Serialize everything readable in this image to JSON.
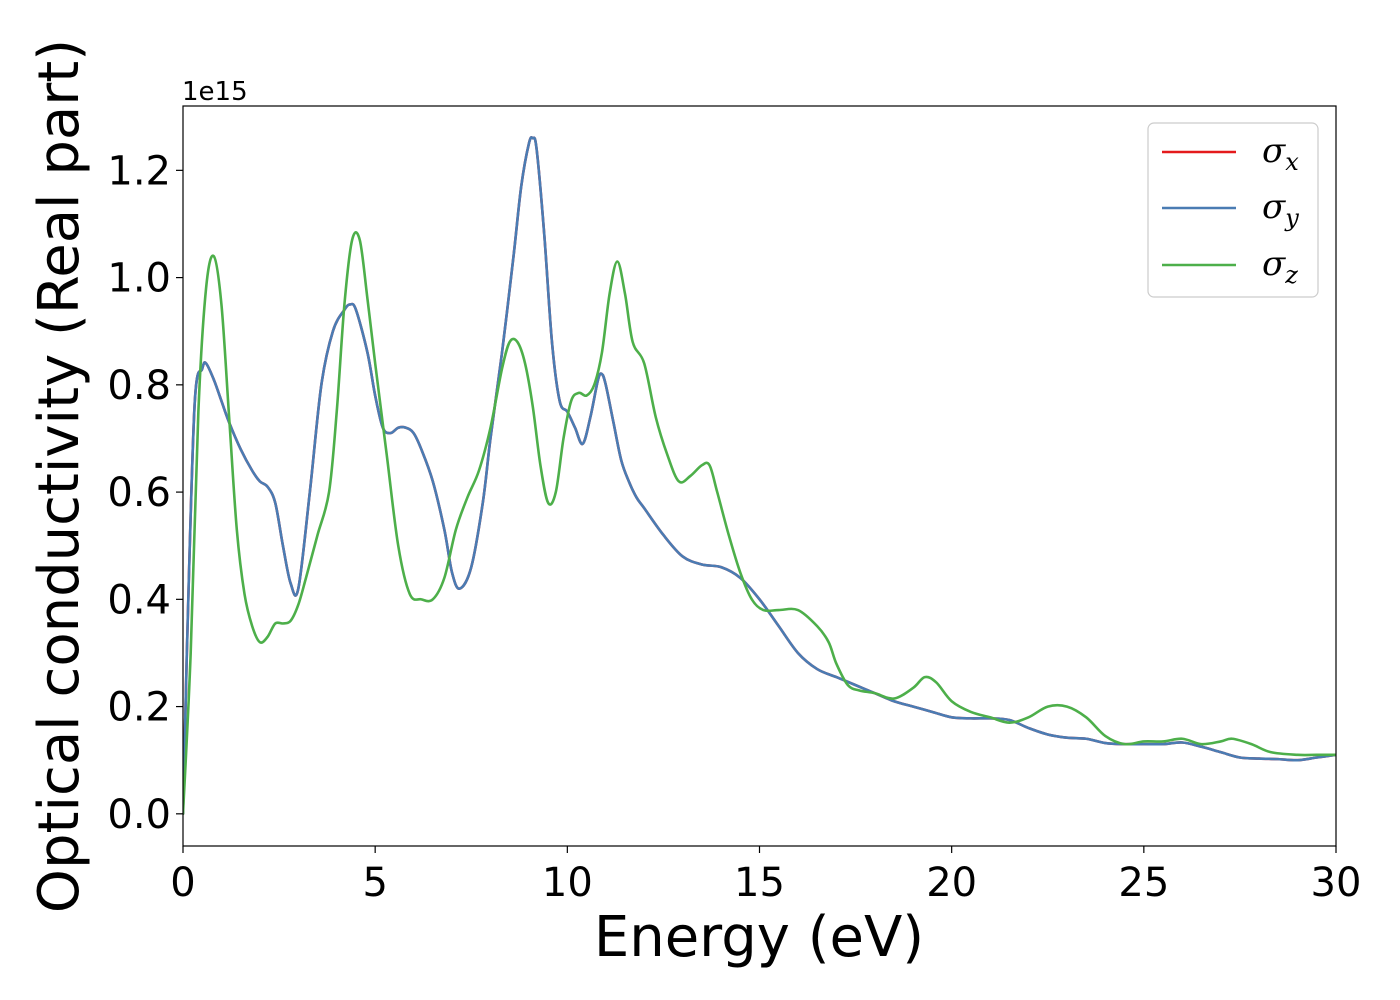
{
  "chart_data": {
    "type": "line",
    "xlabel": "Energy (eV)",
    "ylabel": "Optical conductivity (Real part)",
    "y_offset_text": "1e15",
    "xlim": [
      0,
      30
    ],
    "ylim": [
      -0.06,
      1.32
    ],
    "xticks": [
      0,
      5,
      10,
      15,
      20,
      25,
      30
    ],
    "xtick_labels": [
      "0",
      "5",
      "10",
      "15",
      "20",
      "25",
      "30"
    ],
    "yticks": [
      0.0,
      0.2,
      0.4,
      0.6,
      0.8,
      1.0,
      1.2
    ],
    "ytick_labels": [
      "0.0",
      "0.2",
      "0.4",
      "0.6",
      "0.8",
      "1.0",
      "1.2"
    ],
    "grid": false,
    "legend_position": "top-right",
    "series": [
      {
        "name": "σx",
        "legend_symbol": "σ",
        "legend_subscript": "x",
        "color": "#e41a1c",
        "x": [
          0,
          0.1,
          0.3,
          0.5,
          0.6,
          0.8,
          1.0,
          1.2,
          1.5,
          1.8,
          2.0,
          2.2,
          2.4,
          2.6,
          2.8,
          3.0,
          3.3,
          3.6,
          3.9,
          4.2,
          4.35,
          4.5,
          4.8,
          5.0,
          5.2,
          5.4,
          5.6,
          5.8,
          6.0,
          6.2,
          6.5,
          6.8,
          7.0,
          7.2,
          7.5,
          7.8,
          8.0,
          8.3,
          8.6,
          8.8,
          9.0,
          9.1,
          9.2,
          9.4,
          9.6,
          9.8,
          10.0,
          10.2,
          10.4,
          10.6,
          10.8,
          10.9,
          11.0,
          11.2,
          11.4,
          11.6,
          11.8,
          12.0,
          12.5,
          13.0,
          13.5,
          14.0,
          14.5,
          15.0,
          15.5,
          16.0,
          16.5,
          17.0,
          17.5,
          18.0,
          18.5,
          19.0,
          19.5,
          20.0,
          20.5,
          21.0,
          21.5,
          22.0,
          22.5,
          23.0,
          23.5,
          24.0,
          24.5,
          25.0,
          25.5,
          26.0,
          26.5,
          27.0,
          27.5,
          28.0,
          28.5,
          29.0,
          29.5,
          30.0
        ],
        "values": [
          0.0,
          0.3,
          0.76,
          0.83,
          0.84,
          0.81,
          0.77,
          0.73,
          0.68,
          0.64,
          0.62,
          0.61,
          0.58,
          0.5,
          0.43,
          0.42,
          0.6,
          0.8,
          0.9,
          0.94,
          0.95,
          0.94,
          0.86,
          0.78,
          0.72,
          0.71,
          0.72,
          0.72,
          0.71,
          0.68,
          0.62,
          0.53,
          0.45,
          0.42,
          0.46,
          0.58,
          0.7,
          0.86,
          1.04,
          1.17,
          1.25,
          1.26,
          1.24,
          1.08,
          0.88,
          0.77,
          0.75,
          0.72,
          0.69,
          0.74,
          0.81,
          0.82,
          0.8,
          0.73,
          0.66,
          0.62,
          0.59,
          0.57,
          0.52,
          0.48,
          0.465,
          0.46,
          0.44,
          0.4,
          0.35,
          0.3,
          0.27,
          0.255,
          0.24,
          0.225,
          0.21,
          0.2,
          0.19,
          0.18,
          0.178,
          0.178,
          0.175,
          0.16,
          0.148,
          0.142,
          0.14,
          0.132,
          0.13,
          0.13,
          0.13,
          0.133,
          0.125,
          0.115,
          0.105,
          0.103,
          0.102,
          0.1,
          0.105,
          0.11
        ]
      },
      {
        "name": "σy",
        "legend_symbol": "σ",
        "legend_subscript": "y",
        "color": "#4a7cb3",
        "x": [
          0,
          0.1,
          0.3,
          0.5,
          0.6,
          0.8,
          1.0,
          1.2,
          1.5,
          1.8,
          2.0,
          2.2,
          2.4,
          2.6,
          2.8,
          3.0,
          3.3,
          3.6,
          3.9,
          4.2,
          4.35,
          4.5,
          4.8,
          5.0,
          5.2,
          5.4,
          5.6,
          5.8,
          6.0,
          6.2,
          6.5,
          6.8,
          7.0,
          7.2,
          7.5,
          7.8,
          8.0,
          8.3,
          8.6,
          8.8,
          9.0,
          9.1,
          9.2,
          9.4,
          9.6,
          9.8,
          10.0,
          10.2,
          10.4,
          10.6,
          10.8,
          10.9,
          11.0,
          11.2,
          11.4,
          11.6,
          11.8,
          12.0,
          12.5,
          13.0,
          13.5,
          14.0,
          14.5,
          15.0,
          15.5,
          16.0,
          16.5,
          17.0,
          17.5,
          18.0,
          18.5,
          19.0,
          19.5,
          20.0,
          20.5,
          21.0,
          21.5,
          22.0,
          22.5,
          23.0,
          23.5,
          24.0,
          24.5,
          25.0,
          25.5,
          26.0,
          26.5,
          27.0,
          27.5,
          28.0,
          28.5,
          29.0,
          29.5,
          30.0
        ],
        "values": [
          0.0,
          0.3,
          0.76,
          0.83,
          0.84,
          0.81,
          0.77,
          0.73,
          0.68,
          0.64,
          0.62,
          0.61,
          0.58,
          0.5,
          0.43,
          0.42,
          0.6,
          0.8,
          0.9,
          0.94,
          0.95,
          0.94,
          0.86,
          0.78,
          0.72,
          0.71,
          0.72,
          0.72,
          0.71,
          0.68,
          0.62,
          0.53,
          0.45,
          0.42,
          0.46,
          0.58,
          0.7,
          0.86,
          1.04,
          1.17,
          1.25,
          1.26,
          1.24,
          1.08,
          0.88,
          0.77,
          0.75,
          0.72,
          0.69,
          0.74,
          0.81,
          0.82,
          0.8,
          0.73,
          0.66,
          0.62,
          0.59,
          0.57,
          0.52,
          0.48,
          0.465,
          0.46,
          0.44,
          0.4,
          0.35,
          0.3,
          0.27,
          0.255,
          0.24,
          0.225,
          0.21,
          0.2,
          0.19,
          0.18,
          0.178,
          0.178,
          0.175,
          0.16,
          0.148,
          0.142,
          0.14,
          0.132,
          0.13,
          0.13,
          0.13,
          0.133,
          0.125,
          0.115,
          0.105,
          0.103,
          0.102,
          0.1,
          0.105,
          0.11
        ]
      },
      {
        "name": "σz",
        "legend_symbol": "σ",
        "legend_subscript": "z",
        "color": "#4daf4a",
        "x": [
          0,
          0.2,
          0.4,
          0.6,
          0.8,
          1.0,
          1.2,
          1.4,
          1.6,
          1.8,
          2.0,
          2.2,
          2.4,
          2.6,
          2.8,
          3.0,
          3.2,
          3.5,
          3.8,
          4.0,
          4.2,
          4.4,
          4.6,
          4.8,
          5.0,
          5.3,
          5.6,
          5.9,
          6.2,
          6.5,
          6.8,
          7.1,
          7.4,
          7.7,
          8.0,
          8.3,
          8.5,
          8.7,
          8.9,
          9.1,
          9.3,
          9.5,
          9.7,
          9.9,
          10.1,
          10.3,
          10.5,
          10.7,
          10.9,
          11.1,
          11.3,
          11.5,
          11.7,
          12.0,
          12.3,
          12.6,
          12.9,
          13.2,
          13.5,
          13.7,
          13.9,
          14.2,
          14.5,
          14.8,
          15.1,
          15.5,
          16.0,
          16.5,
          16.8,
          17.0,
          17.3,
          17.6,
          18.0,
          18.5,
          19.0,
          19.3,
          19.6,
          20.0,
          20.5,
          21.0,
          21.5,
          22.0,
          22.5,
          23.0,
          23.5,
          24.0,
          24.5,
          25.0,
          25.5,
          26.0,
          26.5,
          27.0,
          27.3,
          27.8,
          28.3,
          29.0,
          29.5,
          30.0
        ],
        "values": [
          0.0,
          0.3,
          0.75,
          0.98,
          1.04,
          0.95,
          0.74,
          0.53,
          0.41,
          0.35,
          0.32,
          0.33,
          0.355,
          0.355,
          0.36,
          0.39,
          0.44,
          0.52,
          0.6,
          0.75,
          0.95,
          1.07,
          1.07,
          0.96,
          0.84,
          0.67,
          0.5,
          0.41,
          0.4,
          0.4,
          0.44,
          0.53,
          0.59,
          0.64,
          0.72,
          0.83,
          0.88,
          0.88,
          0.84,
          0.76,
          0.65,
          0.58,
          0.6,
          0.7,
          0.77,
          0.785,
          0.78,
          0.8,
          0.86,
          0.97,
          1.03,
          0.97,
          0.88,
          0.84,
          0.74,
          0.67,
          0.62,
          0.63,
          0.65,
          0.65,
          0.6,
          0.52,
          0.45,
          0.4,
          0.38,
          0.38,
          0.38,
          0.35,
          0.32,
          0.28,
          0.24,
          0.23,
          0.225,
          0.215,
          0.235,
          0.255,
          0.245,
          0.21,
          0.19,
          0.18,
          0.17,
          0.18,
          0.2,
          0.2,
          0.18,
          0.145,
          0.13,
          0.135,
          0.135,
          0.14,
          0.13,
          0.135,
          0.14,
          0.13,
          0.115,
          0.11,
          0.11,
          0.11
        ]
      }
    ]
  }
}
